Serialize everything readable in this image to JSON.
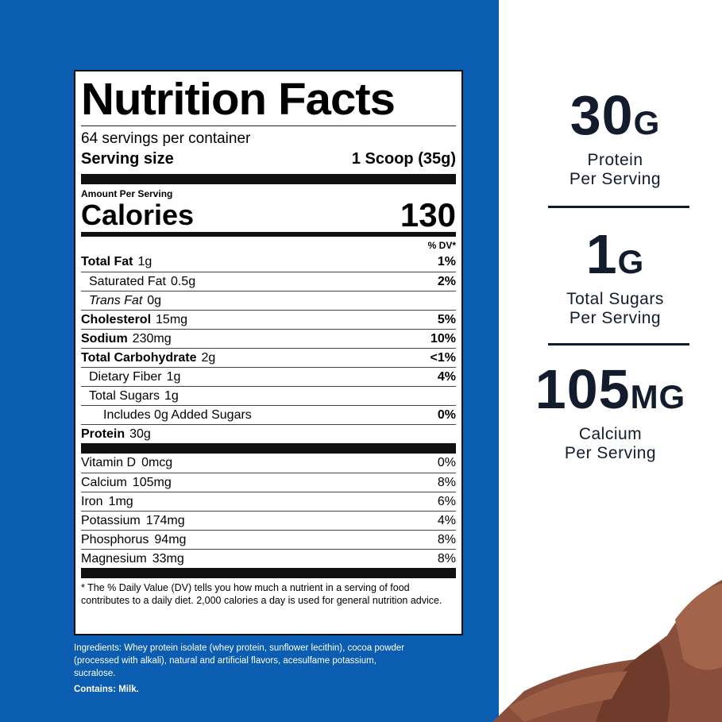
{
  "label": {
    "title": "Nutrition Facts",
    "servings": "64 servings per container",
    "serving_size_label": "Serving size",
    "serving_size_value": "1 Scoop (35g)",
    "amount_per_serving": "Amount Per Serving",
    "calories_label": "Calories",
    "calories_value": "130",
    "dv_header": "% DV*",
    "nutrients": [
      {
        "name": "Total Fat",
        "amount": "1g",
        "dv": "1%",
        "bold": true,
        "indent": 0
      },
      {
        "name": "Saturated Fat",
        "amount": "0.5g",
        "dv": "2%",
        "bold": false,
        "indent": 1
      },
      {
        "name": "Trans Fat",
        "amount": "0g",
        "dv": "",
        "bold": false,
        "indent": 1,
        "italic": true
      },
      {
        "name": "Cholesterol",
        "amount": "15mg",
        "dv": "5%",
        "bold": true,
        "indent": 0
      },
      {
        "name": "Sodium",
        "amount": "230mg",
        "dv": "10%",
        "bold": true,
        "indent": 0
      },
      {
        "name": "Total Carbohydrate",
        "amount": "2g",
        "dv": "<1%",
        "bold": true,
        "indent": 0
      },
      {
        "name": "Dietary Fiber",
        "amount": "1g",
        "dv": "4%",
        "bold": false,
        "indent": 1
      },
      {
        "name": "Total Sugars",
        "amount": "1g",
        "dv": "",
        "bold": false,
        "indent": 1
      },
      {
        "name": "Includes 0g Added Sugars",
        "amount": "",
        "dv": "0%",
        "bold": false,
        "indent": 2
      },
      {
        "name": "Protein",
        "amount": "30g",
        "dv": "",
        "bold": true,
        "indent": 0
      }
    ],
    "vitamins": [
      {
        "name": "Vitamin D",
        "amount": "0mcg",
        "dv": "0%"
      },
      {
        "name": "Calcium",
        "amount": "105mg",
        "dv": "8%"
      },
      {
        "name": "Iron",
        "amount": "1mg",
        "dv": "6%"
      },
      {
        "name": "Potassium",
        "amount": "174mg",
        "dv": "4%"
      },
      {
        "name": "Phosphorus",
        "amount": "94mg",
        "dv": "8%"
      },
      {
        "name": "Magnesium",
        "amount": "33mg",
        "dv": "8%"
      }
    ],
    "footnote": "* The % Daily Value (DV) tells you how much a nutrient in a serving of food contributes to a daily diet. 2,000 calories a day is used for general nutrition advice."
  },
  "ingredients": "Ingredients: Whey protein isolate (whey protein, sunflower lecithin), cocoa powder (processed with alkali), natural and artificial flavors, acesulfame potassium, sucralose.",
  "contains": "Contains: Milk.",
  "highlights": [
    {
      "number": "30",
      "unit": "G",
      "line1": "Protein",
      "line2": "Per Serving"
    },
    {
      "number": "1",
      "unit": "G",
      "line1": "Total Sugars",
      "line2": "Per Serving"
    },
    {
      "number": "105",
      "unit": "MG",
      "line1": "Calcium",
      "line2": "Per Serving"
    }
  ],
  "colors": {
    "panel_blue": "#0a5db0",
    "text_navy": "#131c2c",
    "chocolate": "#8a4f3a"
  }
}
